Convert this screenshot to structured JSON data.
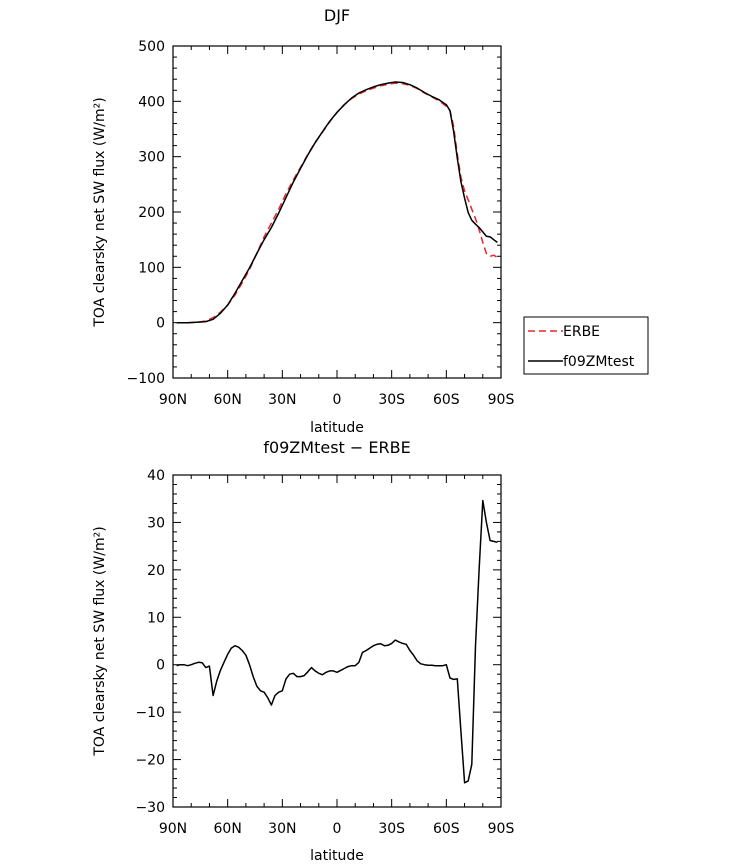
{
  "chart_data": [
    {
      "type": "line",
      "title": "DJF",
      "xlabel": "latitude",
      "ylabel": "TOA clearsky net SW flux (W/m²)",
      "xlim": [
        90,
        -90
      ],
      "ylim": [
        -100,
        500
      ],
      "xticks": [
        90,
        60,
        30,
        0,
        -30,
        -60,
        -90
      ],
      "xticklabels": [
        "90N",
        "60N",
        "30N",
        "0",
        "30S",
        "60S",
        "90S"
      ],
      "yticks": [
        -100,
        0,
        100,
        200,
        300,
        400,
        500
      ],
      "yticklabels": [
        "−100",
        "0",
        "100",
        "200",
        "300",
        "400",
        "500"
      ],
      "legend_position": "right",
      "series": [
        {
          "name": "ERBE",
          "color": "#e8262a",
          "dash": "dashed",
          "x": [
            88,
            82,
            76,
            72,
            68,
            64,
            60,
            56,
            52,
            48,
            44,
            40,
            36,
            32,
            28,
            24,
            20,
            16,
            12,
            8,
            4,
            0,
            -4,
            -8,
            -12,
            -16,
            -20,
            -24,
            -28,
            -32,
            -36,
            -40,
            -44,
            -48,
            -52,
            -56,
            -60,
            -62,
            -64,
            -66,
            -68,
            -70,
            -72,
            -74,
            -76,
            -78,
            -80,
            -82,
            -84,
            -86,
            -88
          ],
          "y": [
            0,
            0,
            1,
            3,
            9,
            19,
            32,
            50,
            72,
            96,
            125,
            155,
            180,
            205,
            233,
            258,
            281,
            304,
            326,
            344,
            363,
            380,
            394,
            405,
            413,
            419,
            424,
            428,
            431,
            433,
            432,
            429,
            423,
            415,
            408,
            401,
            391,
            383,
            355,
            305,
            263,
            238,
            222,
            205,
            188,
            168,
            145,
            125,
            120,
            122,
            118
          ]
        },
        {
          "name": "f09ZMtest",
          "color": "#000000",
          "dash": "solid",
          "x": [
            88,
            82,
            76,
            72,
            68,
            64,
            60,
            56,
            52,
            48,
            44,
            40,
            36,
            32,
            28,
            24,
            20,
            16,
            12,
            8,
            4,
            0,
            -4,
            -8,
            -12,
            -16,
            -20,
            -24,
            -28,
            -32,
            -36,
            -40,
            -44,
            -48,
            -52,
            -56,
            -60,
            -62,
            -64,
            -66,
            -68,
            -70,
            -72,
            -74,
            -76,
            -78,
            -80,
            -82,
            -84,
            -86,
            -88
          ],
          "y": [
            0,
            0,
            1,
            2,
            6,
            17,
            32,
            53,
            76,
            99,
            125,
            150,
            172,
            198,
            226,
            254,
            279,
            303,
            325,
            345,
            364,
            380,
            394,
            406,
            415,
            421,
            426,
            430,
            433,
            435,
            434,
            430,
            424,
            416,
            409,
            403,
            394,
            383,
            346,
            297,
            255,
            225,
            199,
            185,
            178,
            172,
            164,
            156,
            155,
            150,
            145
          ]
        }
      ]
    },
    {
      "type": "line",
      "title": "f09ZMtest − ERBE",
      "xlabel": "latitude",
      "ylabel": "TOA clearsky net SW flux (W/m²)",
      "xlim": [
        90,
        -90
      ],
      "ylim": [
        -30,
        40
      ],
      "xticks": [
        90,
        60,
        30,
        0,
        -30,
        -60,
        -90
      ],
      "xticklabels": [
        "90N",
        "60N",
        "30N",
        "0",
        "30S",
        "60S",
        "90S"
      ],
      "yticks": [
        -30,
        -20,
        -10,
        0,
        10,
        20,
        30,
        40
      ],
      "yticklabels": [
        "−30",
        "−20",
        "−10",
        "0",
        "10",
        "20",
        "30",
        "40"
      ],
      "series": [
        {
          "color": "#000000",
          "x": [
            88,
            86,
            84,
            82,
            80,
            78,
            76,
            74,
            72,
            70,
            68,
            66,
            64,
            62,
            60,
            58,
            56,
            54,
            52,
            50,
            48,
            46,
            44,
            42,
            40,
            38,
            36,
            34,
            32,
            30,
            28,
            26,
            24,
            22,
            20,
            18,
            16,
            14,
            12,
            10,
            8,
            6,
            4,
            2,
            0,
            -2,
            -4,
            -6,
            -8,
            -10,
            -12,
            -14,
            -16,
            -18,
            -20,
            -22,
            -24,
            -26,
            -28,
            -30,
            -32,
            -34,
            -36,
            -38,
            -40,
            -42,
            -44,
            -46,
            -48,
            -50,
            -52,
            -54,
            -56,
            -58,
            -60,
            -62,
            -64,
            -66,
            -68,
            -70,
            -72,
            -74,
            -76,
            -78,
            -80,
            -82,
            -84,
            -86,
            -88
          ],
          "y": [
            -0.2,
            0,
            0,
            -0.2,
            0,
            0.3,
            0.5,
            0.4,
            -0.6,
            -0.3,
            -6.5,
            -3.5,
            -1.2,
            0.5,
            2.2,
            3.5,
            4,
            3.7,
            3,
            2,
            0,
            -2.5,
            -4.5,
            -5.5,
            -5.8,
            -7,
            -8.5,
            -6.5,
            -5.8,
            -5.5,
            -3,
            -2,
            -1.8,
            -2.5,
            -2.5,
            -2.3,
            -1.5,
            -0.6,
            -1.3,
            -1.8,
            -2.1,
            -1.6,
            -1.3,
            -1.3,
            -1.6,
            -1.2,
            -0.8,
            -0.4,
            -0.2,
            -0.2,
            0.5,
            2.6,
            3,
            3.5,
            4,
            4.3,
            4.4,
            4,
            4.1,
            4.5,
            5.2,
            4.8,
            4.5,
            4.3,
            3,
            2,
            0.8,
            0.2,
            0,
            -0.1,
            -0.1,
            -0.2,
            -0.2,
            -0.2,
            0,
            -2.8,
            -3.1,
            -3,
            -14,
            -24.9,
            -24.5,
            -21,
            4,
            20,
            34.6,
            30,
            26.2,
            26,
            25.8
          ]
        }
      ]
    }
  ]
}
